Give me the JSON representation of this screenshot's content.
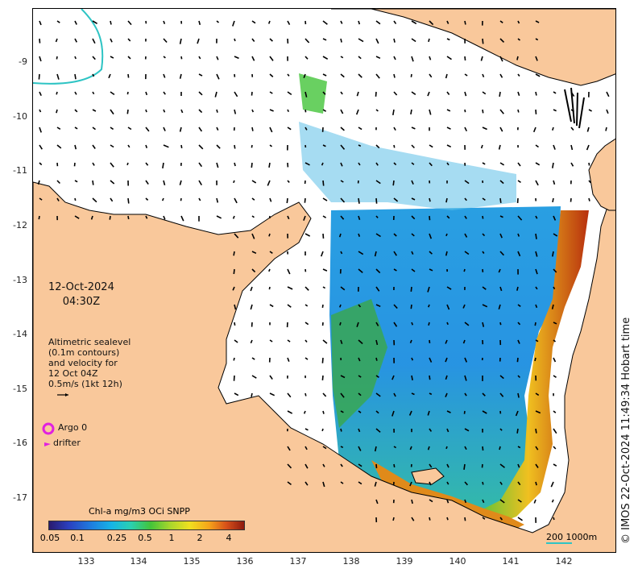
{
  "map": {
    "date": "12-Oct-2024",
    "time": "04:30Z",
    "altimetry_lines": [
      "Altimetric sealevel",
      "(0.1m contours)",
      "and velocity for",
      "12 Oct 04Z",
      "0.5m/s (1kt 12h)"
    ],
    "legend": {
      "argo_label": "Argo 0",
      "drifter_label": "drifter"
    },
    "colorbar": {
      "title": "Chl-a mg/m3 OCi SNPP",
      "ticks": [
        "0.05",
        "0.1",
        "0.25",
        "0.5",
        "1",
        "2",
        "4"
      ]
    },
    "scale": {
      "label": "200  1000m"
    },
    "credit": "© IMOS 22-Oct-2024 11:49:34 Hobart time",
    "lat_labels": [
      "-9",
      "-10",
      "-11",
      "-12",
      "-13",
      "-14",
      "-15",
      "-16",
      "-17"
    ],
    "lon_labels": [
      "133",
      "134",
      "135",
      "136",
      "137",
      "138",
      "139",
      "140",
      "141",
      "142"
    ],
    "colors": {
      "land": "#f9c89b",
      "ocean": "#ffffff",
      "contour": "#2ec4c4",
      "argo": "#e020e0",
      "arrow": "#000000"
    }
  }
}
